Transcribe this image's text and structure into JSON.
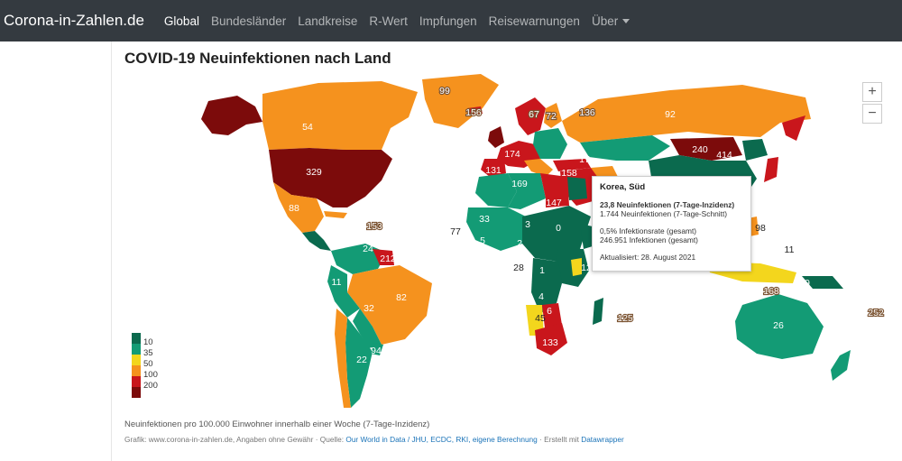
{
  "nav": {
    "brand": "Corona-in-Zahlen.de",
    "items": [
      {
        "label": "Global",
        "active": true
      },
      {
        "label": "Bundesländer",
        "active": false
      },
      {
        "label": "Landkreise",
        "active": false
      },
      {
        "label": "R-Wert",
        "active": false
      },
      {
        "label": "Impfungen",
        "active": false
      },
      {
        "label": "Reisewarnungen",
        "active": false
      },
      {
        "label": "Über",
        "active": false,
        "dropdown": true
      }
    ]
  },
  "map": {
    "title": "COVID-19 Neuinfektionen nach Land",
    "zoom_in": "+",
    "zoom_out": "−",
    "legend": [
      {
        "label": "10",
        "color": "#0b6a4e"
      },
      {
        "label": "35",
        "color": "#139b75"
      },
      {
        "label": "50",
        "color": "#f3d61d"
      },
      {
        "label": "100",
        "color": "#f5921e"
      },
      {
        "label": "200",
        "color": "#c9161c"
      },
      {
        "label": "",
        "color": "#7c0b0b"
      }
    ],
    "colors": {
      "ocean": "#ffffff",
      "dark_green": "#0b6a4e",
      "green": "#139b75",
      "yellow": "#f3d61d",
      "orange": "#f5921e",
      "red": "#c9161c",
      "dark_red": "#7c0b0b"
    },
    "country_labels": [
      "99",
      "156",
      "67",
      "72",
      "92",
      "54",
      "240",
      "414",
      "329",
      "174",
      "131",
      "158",
      "169",
      "147",
      "17",
      "88",
      "153",
      "77",
      "33",
      "5",
      "24",
      "212",
      "82",
      "11",
      "32",
      "94",
      "18",
      "22",
      "45",
      "133",
      "125",
      "11",
      "26",
      "8",
      "252",
      "28",
      "12",
      "3",
      "2",
      "1",
      "0",
      "4",
      "6",
      "10",
      "98",
      "168",
      "136",
      "9"
    ]
  },
  "tooltip": {
    "country": "Korea, Süd",
    "incidence": "23,8 Neuinfektionen (7-Tage-Inzidenz)",
    "avg": "1.744 Neuinfektionen (7-Tage-Schnitt)",
    "rate": "0,5% Infektionsrate (gesamt)",
    "total": "246.951 Infektionen (gesamt)",
    "updated": "Aktualisiert: 28. August 2021"
  },
  "footer": {
    "description": "Neuinfektionen pro 100.000 Einwohner innerhalb einer Woche (7-Tage-Inzidenz)",
    "source_prefix": "Grafik: www.corona-in-zahlen.de, Angaben ohne Gewähr · Quelle: ",
    "source_links": "Our World in Data / JHU, ECDC, RKI, eigene Berechnung",
    "source_mid": " · Erstellt mit ",
    "tool_link": "Datawrapper"
  }
}
